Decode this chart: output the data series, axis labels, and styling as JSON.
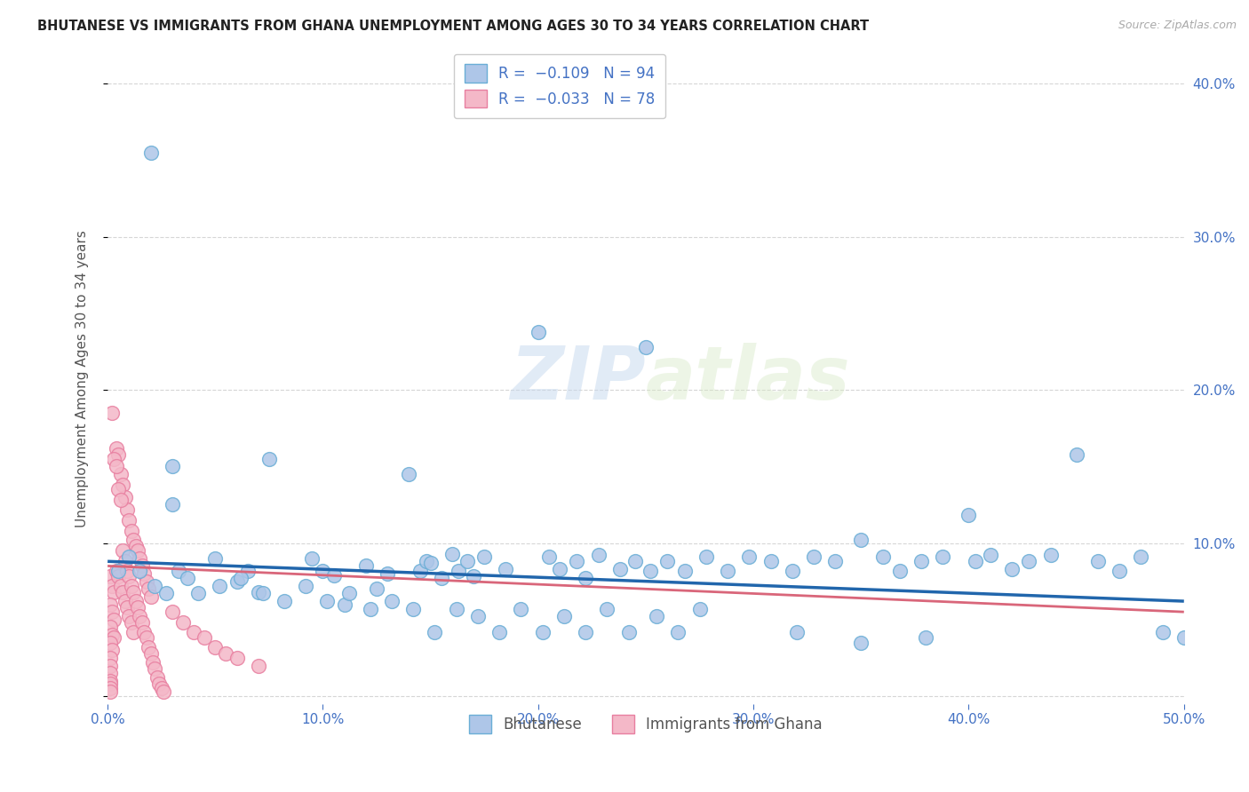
{
  "title": "BHUTANESE VS IMMIGRANTS FROM GHANA UNEMPLOYMENT AMONG AGES 30 TO 34 YEARS CORRELATION CHART",
  "source": "Source: ZipAtlas.com",
  "ylabel": "Unemployment Among Ages 30 to 34 years",
  "xlim": [
    0.0,
    0.5
  ],
  "ylim": [
    -0.005,
    0.42
  ],
  "grid_color": "#cccccc",
  "background_color": "#ffffff",
  "watermark_zip": "ZIP",
  "watermark_atlas": "atlas",
  "bhutanese_color": "#aec6e8",
  "ghana_color": "#f4b8c8",
  "bhutanese_edge": "#6aaed6",
  "ghana_edge": "#e87fa0",
  "trend_blue": "#2166ac",
  "trend_pink": "#d9667a",
  "bottom_legend": [
    "Bhutanese",
    "Immigrants from Ghana"
  ],
  "bottom_legend_colors": [
    "#aec6e8",
    "#f4b8c8"
  ],
  "bhutanese_points": [
    [
      0.02,
      0.355
    ],
    [
      0.03,
      0.15
    ],
    [
      0.03,
      0.125
    ],
    [
      0.075,
      0.155
    ],
    [
      0.05,
      0.09
    ],
    [
      0.06,
      0.075
    ],
    [
      0.065,
      0.082
    ],
    [
      0.07,
      0.068
    ],
    [
      0.095,
      0.09
    ],
    [
      0.1,
      0.082
    ],
    [
      0.105,
      0.079
    ],
    [
      0.11,
      0.06
    ],
    [
      0.12,
      0.085
    ],
    [
      0.125,
      0.07
    ],
    [
      0.13,
      0.08
    ],
    [
      0.14,
      0.145
    ],
    [
      0.145,
      0.082
    ],
    [
      0.148,
      0.088
    ],
    [
      0.15,
      0.087
    ],
    [
      0.155,
      0.077
    ],
    [
      0.16,
      0.093
    ],
    [
      0.163,
      0.082
    ],
    [
      0.167,
      0.088
    ],
    [
      0.17,
      0.078
    ],
    [
      0.175,
      0.091
    ],
    [
      0.185,
      0.083
    ],
    [
      0.2,
      0.238
    ],
    [
      0.205,
      0.091
    ],
    [
      0.21,
      0.083
    ],
    [
      0.218,
      0.088
    ],
    [
      0.222,
      0.077
    ],
    [
      0.228,
      0.092
    ],
    [
      0.238,
      0.083
    ],
    [
      0.245,
      0.088
    ],
    [
      0.25,
      0.228
    ],
    [
      0.252,
      0.082
    ],
    [
      0.26,
      0.088
    ],
    [
      0.268,
      0.082
    ],
    [
      0.278,
      0.091
    ],
    [
      0.288,
      0.082
    ],
    [
      0.298,
      0.091
    ],
    [
      0.308,
      0.088
    ],
    [
      0.318,
      0.082
    ],
    [
      0.328,
      0.091
    ],
    [
      0.338,
      0.088
    ],
    [
      0.35,
      0.102
    ],
    [
      0.36,
      0.091
    ],
    [
      0.368,
      0.082
    ],
    [
      0.378,
      0.088
    ],
    [
      0.388,
      0.091
    ],
    [
      0.4,
      0.118
    ],
    [
      0.403,
      0.088
    ],
    [
      0.41,
      0.092
    ],
    [
      0.42,
      0.083
    ],
    [
      0.428,
      0.088
    ],
    [
      0.438,
      0.092
    ],
    [
      0.45,
      0.158
    ],
    [
      0.46,
      0.088
    ],
    [
      0.47,
      0.082
    ],
    [
      0.48,
      0.091
    ],
    [
      0.005,
      0.082
    ],
    [
      0.01,
      0.091
    ],
    [
      0.015,
      0.082
    ],
    [
      0.022,
      0.072
    ],
    [
      0.027,
      0.067
    ],
    [
      0.033,
      0.082
    ],
    [
      0.037,
      0.077
    ],
    [
      0.042,
      0.067
    ],
    [
      0.052,
      0.072
    ],
    [
      0.062,
      0.077
    ],
    [
      0.072,
      0.067
    ],
    [
      0.082,
      0.062
    ],
    [
      0.092,
      0.072
    ],
    [
      0.102,
      0.062
    ],
    [
      0.112,
      0.067
    ],
    [
      0.122,
      0.057
    ],
    [
      0.132,
      0.062
    ],
    [
      0.142,
      0.057
    ],
    [
      0.152,
      0.042
    ],
    [
      0.162,
      0.057
    ],
    [
      0.172,
      0.052
    ],
    [
      0.182,
      0.042
    ],
    [
      0.192,
      0.057
    ],
    [
      0.202,
      0.042
    ],
    [
      0.212,
      0.052
    ],
    [
      0.222,
      0.042
    ],
    [
      0.232,
      0.057
    ],
    [
      0.242,
      0.042
    ],
    [
      0.255,
      0.052
    ],
    [
      0.265,
      0.042
    ],
    [
      0.275,
      0.057
    ],
    [
      0.32,
      0.042
    ],
    [
      0.35,
      0.035
    ],
    [
      0.38,
      0.038
    ],
    [
      0.49,
      0.042
    ],
    [
      0.5,
      0.038
    ]
  ],
  "ghana_points": [
    [
      0.002,
      0.185
    ],
    [
      0.004,
      0.162
    ],
    [
      0.005,
      0.158
    ],
    [
      0.006,
      0.145
    ],
    [
      0.007,
      0.138
    ],
    [
      0.008,
      0.13
    ],
    [
      0.009,
      0.122
    ],
    [
      0.01,
      0.115
    ],
    [
      0.011,
      0.108
    ],
    [
      0.012,
      0.102
    ],
    [
      0.013,
      0.098
    ],
    [
      0.014,
      0.095
    ],
    [
      0.015,
      0.09
    ],
    [
      0.016,
      0.085
    ],
    [
      0.017,
      0.08
    ],
    [
      0.018,
      0.075
    ],
    [
      0.019,
      0.07
    ],
    [
      0.02,
      0.065
    ],
    [
      0.001,
      0.078
    ],
    [
      0.002,
      0.072
    ],
    [
      0.003,
      0.068
    ],
    [
      0.004,
      0.082
    ],
    [
      0.005,
      0.078
    ],
    [
      0.006,
      0.072
    ],
    [
      0.007,
      0.068
    ],
    [
      0.008,
      0.062
    ],
    [
      0.009,
      0.058
    ],
    [
      0.01,
      0.052
    ],
    [
      0.011,
      0.048
    ],
    [
      0.012,
      0.042
    ],
    [
      0.001,
      0.06
    ],
    [
      0.002,
      0.055
    ],
    [
      0.003,
      0.05
    ],
    [
      0.001,
      0.045
    ],
    [
      0.002,
      0.04
    ],
    [
      0.003,
      0.038
    ],
    [
      0.001,
      0.035
    ],
    [
      0.002,
      0.03
    ],
    [
      0.001,
      0.025
    ],
    [
      0.001,
      0.02
    ],
    [
      0.001,
      0.015
    ],
    [
      0.001,
      0.01
    ],
    [
      0.001,
      0.008
    ],
    [
      0.001,
      0.005
    ],
    [
      0.001,
      0.003
    ],
    [
      0.003,
      0.155
    ],
    [
      0.004,
      0.15
    ],
    [
      0.005,
      0.135
    ],
    [
      0.006,
      0.128
    ],
    [
      0.007,
      0.095
    ],
    [
      0.008,
      0.088
    ],
    [
      0.009,
      0.082
    ],
    [
      0.01,
      0.078
    ],
    [
      0.011,
      0.072
    ],
    [
      0.012,
      0.068
    ],
    [
      0.013,
      0.062
    ],
    [
      0.014,
      0.058
    ],
    [
      0.015,
      0.052
    ],
    [
      0.016,
      0.048
    ],
    [
      0.017,
      0.042
    ],
    [
      0.018,
      0.038
    ],
    [
      0.019,
      0.032
    ],
    [
      0.02,
      0.028
    ],
    [
      0.021,
      0.022
    ],
    [
      0.022,
      0.018
    ],
    [
      0.023,
      0.012
    ],
    [
      0.024,
      0.008
    ],
    [
      0.025,
      0.005
    ],
    [
      0.026,
      0.003
    ],
    [
      0.03,
      0.055
    ],
    [
      0.035,
      0.048
    ],
    [
      0.04,
      0.042
    ],
    [
      0.045,
      0.038
    ],
    [
      0.05,
      0.032
    ],
    [
      0.055,
      0.028
    ],
    [
      0.06,
      0.025
    ],
    [
      0.07,
      0.02
    ]
  ],
  "trend_blue_y0": 0.088,
  "trend_blue_y1": 0.062,
  "trend_pink_y0": 0.085,
  "trend_pink_y1": 0.055
}
